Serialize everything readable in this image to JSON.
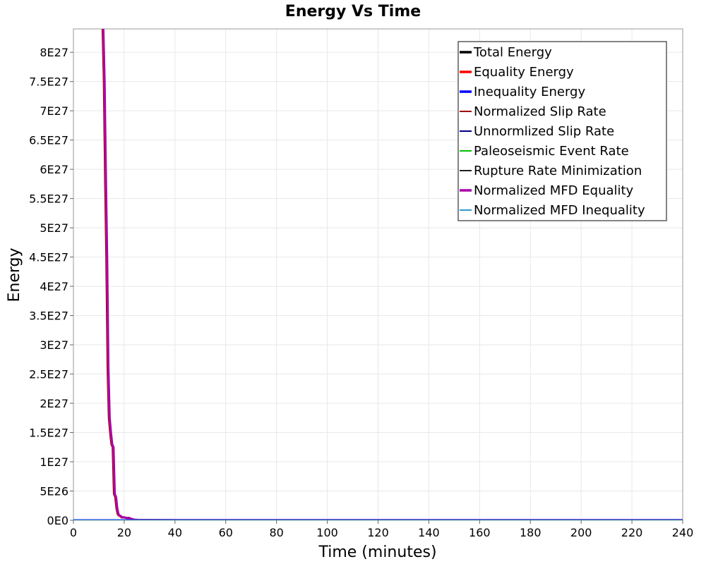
{
  "chart_data": {
    "type": "line",
    "title": "Energy Vs Time",
    "xlabel": "Time (minutes)",
    "ylabel": "Energy",
    "xlim": [
      0,
      240
    ],
    "ylim": [
      0,
      8.4e+27
    ],
    "x_ticks": [
      0,
      20,
      40,
      60,
      80,
      100,
      120,
      140,
      160,
      180,
      200,
      220,
      240
    ],
    "x_tick_labels": [
      "0",
      "20",
      "40",
      "60",
      "80",
      "100",
      "120",
      "140",
      "160",
      "180",
      "200",
      "220",
      "240"
    ],
    "y_ticks": [
      0,
      5e+26,
      1e+27,
      1.5e+27,
      2e+27,
      2.5e+27,
      3e+27,
      3.5e+27,
      4e+27,
      4.5e+27,
      5e+27,
      5.5e+27,
      6e+27,
      6.5e+27,
      7e+27,
      7.5e+27,
      8e+27
    ],
    "y_tick_labels": [
      "0E0",
      "5E26",
      "1E27",
      "1.5E27",
      "2E27",
      "2.5E27",
      "3E27",
      "3.5E27",
      "4E27",
      "4.5E27",
      "5E27",
      "5.5E27",
      "6E27",
      "6.5E27",
      "7E27",
      "7.5E27",
      "8E27"
    ],
    "grid": true,
    "legend_position": "top-right",
    "series": [
      {
        "name": "Total Energy",
        "color": "#000000",
        "width": 3,
        "x": [
          11.5,
          12,
          12.5,
          13,
          13.5,
          14,
          14.5,
          15,
          15.5,
          16,
          16.5,
          17,
          17.5,
          18,
          18.5,
          19,
          20,
          21,
          22,
          23,
          24,
          26,
          30,
          60,
          120,
          180,
          240
        ],
        "y": [
          8.4e+27,
          7.5e+27,
          5.9e+27,
          4.5e+27,
          2.6e+27,
          1.75e+27,
          1.5e+27,
          1.3e+27,
          1.25e+27,
          4.5e+26,
          4e+26,
          2e+26,
          1e+26,
          8e+25,
          7e+25,
          5e+25,
          5e+25,
          4e+25,
          4e+25,
          2e+25,
          1e+25,
          5e+24,
          2e+24,
          1e+24,
          1e+24,
          1e+24,
          1e+24
        ]
      },
      {
        "name": "Equality Energy",
        "color": "#ff0000",
        "width": 3,
        "x": [
          11.6,
          12.1,
          12.6,
          13.1,
          13.6,
          14.1,
          14.6,
          15.1,
          15.6,
          16.1,
          16.6,
          17.1,
          17.6,
          18.1,
          18.6,
          19.1,
          20,
          21,
          22,
          23,
          24,
          26,
          30,
          60,
          120,
          180,
          240
        ],
        "y": [
          8.4e+27,
          7.5e+27,
          5.9e+27,
          4.5e+27,
          2.6e+27,
          1.75e+27,
          1.5e+27,
          1.3e+27,
          1.25e+27,
          4.5e+26,
          4e+26,
          2e+26,
          1e+26,
          8e+25,
          7e+25,
          5e+25,
          5e+25,
          4e+25,
          4e+25,
          2e+25,
          1e+25,
          5e+24,
          2e+24,
          1e+24,
          1e+24,
          1e+24,
          1e+24
        ]
      },
      {
        "name": "Inequality Energy",
        "color": "#0000ff",
        "width": 3,
        "x": [
          0,
          240
        ],
        "y": [
          0,
          0
        ]
      },
      {
        "name": "Normalized Slip Rate",
        "color": "#a00000",
        "width": 1.5,
        "x": [
          0,
          240
        ],
        "y": [
          0,
          0
        ]
      },
      {
        "name": "Unnormlized Slip Rate",
        "color": "#000080",
        "width": 1.5,
        "x": [
          0,
          240
        ],
        "y": [
          0,
          0
        ]
      },
      {
        "name": "Paleoseismic Event Rate",
        "color": "#00c000",
        "width": 1.5,
        "x": [
          0,
          240
        ],
        "y": [
          0,
          0
        ]
      },
      {
        "name": "Rupture Rate Minimization",
        "color": "#202020",
        "width": 1.5,
        "x": [
          0,
          240
        ],
        "y": [
          0,
          0
        ]
      },
      {
        "name": "Normalized MFD Equality",
        "color": "#aa00aa",
        "width": 3,
        "x": [
          11.8,
          12.3,
          12.8,
          13.3,
          13.8,
          14.3,
          14.8,
          15.3,
          15.8,
          16.3,
          16.8,
          17.3,
          17.8,
          18.3,
          18.8,
          19.3,
          20,
          21,
          22,
          23,
          24,
          26,
          30,
          60,
          120,
          180,
          240
        ],
        "y": [
          8.4e+27,
          7.5e+27,
          5.9e+27,
          4.5e+27,
          2.6e+27,
          1.75e+27,
          1.5e+27,
          1.3e+27,
          1.25e+27,
          4.5e+26,
          4e+26,
          2e+26,
          1e+26,
          8e+25,
          7e+25,
          5e+25,
          5e+25,
          4e+25,
          4e+25,
          2e+25,
          1e+25,
          5e+24,
          2e+24,
          1e+24,
          1e+24,
          1e+24,
          1e+24
        ]
      },
      {
        "name": "Normalized MFD Inequality",
        "color": "#3399cc",
        "width": 2,
        "x": [
          0,
          240
        ],
        "y": [
          0,
          0
        ]
      }
    ]
  }
}
